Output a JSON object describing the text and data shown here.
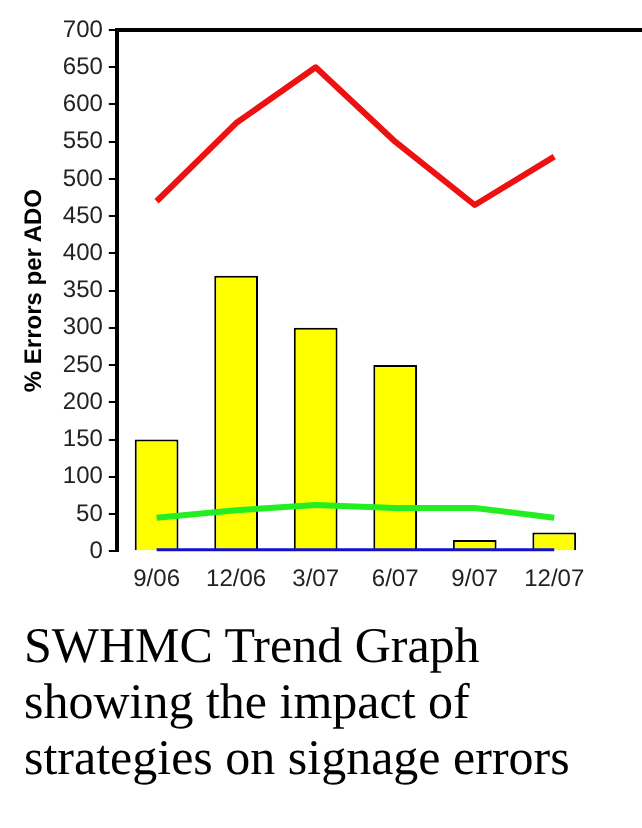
{
  "chart_data": {
    "type": "bar",
    "ylabel": "% Errors per ADO",
    "categories": [
      "9/06",
      "12/06",
      "3/07",
      "6/07",
      "9/07",
      "12/07"
    ],
    "series": [
      {
        "color": "#ffff00",
        "values": [
          150,
          370,
          300,
          250,
          15,
          25
        ]
      },
      {
        "type": "line",
        "color": "#ee1111",
        "values": [
          470,
          575,
          650,
          550,
          465,
          530
        ]
      },
      {
        "type": "line",
        "color": "#22ee22",
        "values": [
          45,
          55,
          62,
          58,
          58,
          45
        ]
      },
      {
        "type": "line",
        "color": "#1111cc",
        "values": [
          0,
          0,
          0,
          0,
          0,
          0
        ]
      }
    ],
    "ylim": [
      0,
      700
    ],
    "yticks": [
      0,
      50,
      100,
      150,
      200,
      250,
      300,
      350,
      400,
      450,
      500,
      550,
      600,
      650,
      700
    ],
    "grid": false,
    "legend": false,
    "marker": "none",
    "annotations": [
      "SWHMC Trend Graph showing the impact of strategies on signage errors"
    ]
  }
}
